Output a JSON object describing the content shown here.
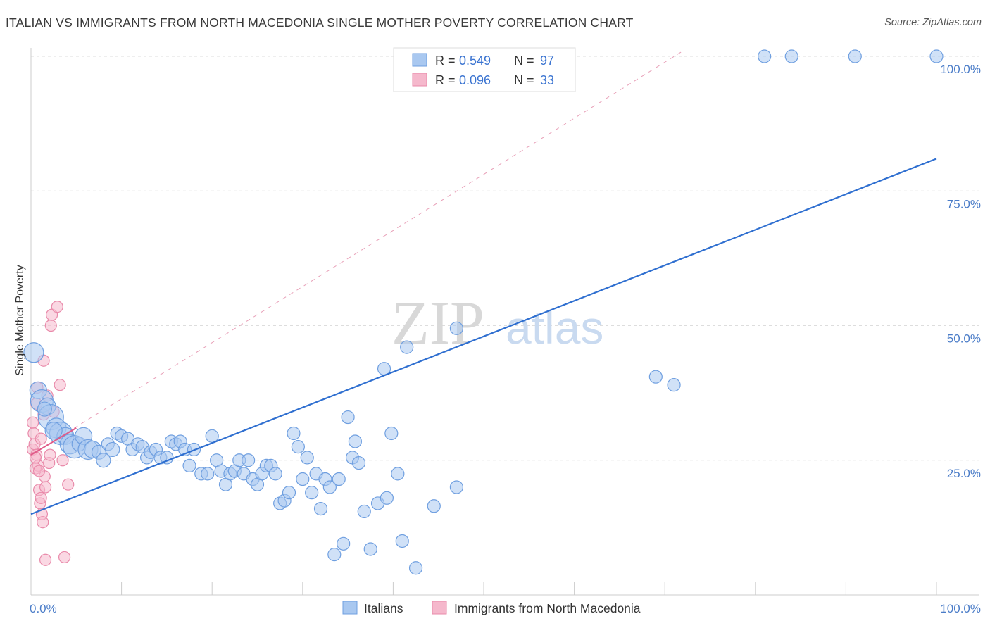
{
  "header": {
    "title": "ITALIAN VS IMMIGRANTS FROM NORTH MACEDONIA SINGLE MOTHER POVERTY CORRELATION CHART",
    "source": "Source: ZipAtlas.com"
  },
  "watermark": {
    "part1": "ZIP",
    "part2": "atlas"
  },
  "legend": {
    "row1": {
      "r_label": "R = ",
      "r_value": "0.549",
      "n_label": "N = ",
      "n_value": "97"
    },
    "row2": {
      "r_label": "R = ",
      "r_value": "0.096",
      "n_label": "N = ",
      "n_value": "33"
    }
  },
  "colors": {
    "blue_fill": "#a9c8f0",
    "blue_stroke": "#6f9fe0",
    "blue_line": "#2f6fd0",
    "pink_fill": "#f5b8cc",
    "pink_stroke": "#e98aaa",
    "pink_line": "#e05a88",
    "grid": "#dddddd",
    "axis_text": "#4a7cc8"
  },
  "chart_data": {
    "type": "scatter",
    "title": "ITALIAN VS IMMIGRANTS FROM NORTH MACEDONIA SINGLE MOTHER POVERTY CORRELATION CHART",
    "xlabel": "",
    "ylabel": "Single Mother Poverty",
    "xlim": [
      0,
      100
    ],
    "ylim": [
      0,
      105
    ],
    "x_tick_labels": [
      "0.0%",
      "100.0%"
    ],
    "y_tick_labels": [
      "25.0%",
      "50.0%",
      "75.0%",
      "100.0%"
    ],
    "y_ticks": [
      25,
      50,
      75,
      100
    ],
    "grid": "horizontal dashed",
    "legend_position": "top-center",
    "series": [
      {
        "name": "Italians",
        "r": 0.549,
        "n": 97,
        "trend": {
          "x": [
            0,
            100
          ],
          "y": [
            15,
            81
          ]
        },
        "points": [
          [
            0.3,
            45,
            14
          ],
          [
            0.8,
            38,
            12
          ],
          [
            1.2,
            36,
            16
          ],
          [
            1.8,
            35,
            12
          ],
          [
            2.2,
            33,
            18
          ],
          [
            2.8,
            31,
            14
          ],
          [
            3.3,
            30,
            16
          ],
          [
            3.8,
            29.5,
            12
          ],
          [
            4.3,
            28,
            14
          ],
          [
            4.8,
            27.5,
            16
          ],
          [
            5.3,
            28,
            10
          ],
          [
            5.8,
            29.5,
            12
          ],
          [
            6.3,
            27,
            14
          ],
          [
            6.8,
            27,
            12
          ],
          [
            7.5,
            26.5,
            10
          ],
          [
            8.0,
            25,
            10
          ],
          [
            8.5,
            28,
            9
          ],
          [
            9.0,
            27,
            10
          ],
          [
            9.5,
            30,
            9
          ],
          [
            10.0,
            29.5,
            9
          ],
          [
            10.7,
            29,
            9
          ],
          [
            11.2,
            27,
            9
          ],
          [
            11.8,
            28,
            9
          ],
          [
            12.3,
            27.5,
            9
          ],
          [
            12.8,
            25.5,
            9
          ],
          [
            13.2,
            26.5,
            9
          ],
          [
            13.8,
            27,
            9
          ],
          [
            14.3,
            25.5,
            9
          ],
          [
            15.0,
            25.5,
            9
          ],
          [
            15.5,
            28.5,
            9
          ],
          [
            16.0,
            28,
            9
          ],
          [
            16.5,
            28.5,
            9
          ],
          [
            17.0,
            27,
            9
          ],
          [
            17.5,
            24,
            9
          ],
          [
            18.0,
            27,
            9
          ],
          [
            18.8,
            22.5,
            9
          ],
          [
            19.5,
            22.5,
            9
          ],
          [
            20.0,
            29.5,
            9
          ],
          [
            20.5,
            25,
            9
          ],
          [
            21.0,
            23,
            9
          ],
          [
            21.5,
            20.5,
            9
          ],
          [
            22.0,
            22.5,
            9
          ],
          [
            22.5,
            23,
            9
          ],
          [
            23.0,
            25,
            9
          ],
          [
            23.5,
            22.5,
            9
          ],
          [
            24.0,
            25,
            9
          ],
          [
            24.5,
            21.5,
            9
          ],
          [
            25.0,
            20.5,
            9
          ],
          [
            25.5,
            22.5,
            9
          ],
          [
            26.0,
            24,
            9
          ],
          [
            26.5,
            24,
            9
          ],
          [
            27.0,
            22.5,
            9
          ],
          [
            27.5,
            17,
            9
          ],
          [
            28.0,
            17.5,
            9
          ],
          [
            28.5,
            19,
            9
          ],
          [
            29.0,
            30,
            9
          ],
          [
            29.5,
            27.5,
            9
          ],
          [
            30.0,
            21.5,
            9
          ],
          [
            30.5,
            25.5,
            9
          ],
          [
            31.0,
            19,
            9
          ],
          [
            31.5,
            22.5,
            9
          ],
          [
            32.0,
            16,
            9
          ],
          [
            32.5,
            21.5,
            9
          ],
          [
            33.0,
            20,
            9
          ],
          [
            33.5,
            7.5,
            9
          ],
          [
            34.0,
            21.5,
            9
          ],
          [
            34.5,
            9.5,
            9
          ],
          [
            35.0,
            33,
            9
          ],
          [
            35.5,
            25.5,
            9
          ],
          [
            35.8,
            28.5,
            9
          ],
          [
            36.2,
            24.5,
            9
          ],
          [
            36.8,
            15.5,
            9
          ],
          [
            37.5,
            8.5,
            9
          ],
          [
            38.3,
            17,
            9
          ],
          [
            39.0,
            42,
            9
          ],
          [
            39.3,
            18,
            9
          ],
          [
            39.8,
            30,
            9
          ],
          [
            40.5,
            22.5,
            9
          ],
          [
            41.0,
            10,
            9
          ],
          [
            41.5,
            46,
            9
          ],
          [
            42.5,
            5,
            9
          ],
          [
            44.5,
            16.5,
            9
          ],
          [
            47.0,
            49.5,
            9
          ],
          [
            47.0,
            20,
            9
          ],
          [
            52.5,
            100,
            9
          ],
          [
            53.0,
            100,
            9
          ],
          [
            55.0,
            100,
            9
          ],
          [
            56.5,
            100,
            9
          ],
          [
            57.0,
            100,
            9
          ],
          [
            69.0,
            40.5,
            9
          ],
          [
            71.0,
            39,
            9
          ],
          [
            81.0,
            100,
            9
          ],
          [
            84.0,
            100,
            9
          ],
          [
            91.0,
            100,
            9
          ],
          [
            100.0,
            100,
            9
          ],
          [
            1.5,
            34.5,
            10
          ],
          [
            2.5,
            30.5,
            12
          ]
        ]
      },
      {
        "name": "Immigrants from North Macedonia",
        "r": 0.096,
        "n": 33,
        "trend": {
          "x": [
            0,
            5
          ],
          "y": [
            26,
            31
          ]
        },
        "dashed_trend": {
          "x": [
            0,
            72
          ],
          "y": [
            26,
            101
          ]
        },
        "points": [
          [
            0.2,
            27,
            8
          ],
          [
            0.4,
            28,
            8
          ],
          [
            0.6,
            26,
            8
          ],
          [
            0.8,
            24,
            8
          ],
          [
            0.3,
            30,
            8
          ],
          [
            0.5,
            23.5,
            8
          ],
          [
            0.9,
            19.5,
            8
          ],
          [
            1.0,
            17,
            8
          ],
          [
            1.2,
            15,
            8
          ],
          [
            1.3,
            13.5,
            8
          ],
          [
            1.1,
            18,
            8
          ],
          [
            0.7,
            38.5,
            8
          ],
          [
            1.4,
            33.5,
            8
          ],
          [
            1.5,
            22,
            8
          ],
          [
            1.6,
            20,
            8
          ],
          [
            1.8,
            37,
            8
          ],
          [
            2.0,
            24.5,
            8
          ],
          [
            2.1,
            26,
            8
          ],
          [
            2.2,
            50,
            8
          ],
          [
            2.3,
            52,
            8
          ],
          [
            1.4,
            43.5,
            8
          ],
          [
            2.9,
            53.5,
            8
          ],
          [
            3.2,
            39,
            8
          ],
          [
            3.5,
            25,
            8
          ],
          [
            4.1,
            20.5,
            8
          ],
          [
            1.6,
            6.5,
            8
          ],
          [
            3.7,
            7,
            8
          ],
          [
            0.5,
            25.5,
            8
          ],
          [
            0.9,
            23,
            8
          ],
          [
            1.1,
            29,
            8
          ],
          [
            0.2,
            32,
            8
          ],
          [
            2.5,
            34,
            8
          ],
          [
            0.6,
            35.5,
            8
          ]
        ]
      }
    ]
  },
  "bottom_legend": {
    "item1": "Italians",
    "item2": "Immigrants from North Macedonia"
  }
}
